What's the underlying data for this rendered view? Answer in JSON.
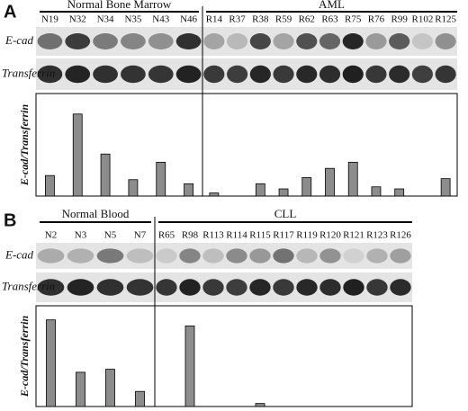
{
  "chart_data": [
    {
      "type": "bar",
      "panel": "A",
      "groups": [
        "Normal Bone Marrow",
        "AML"
      ],
      "blot_labels": [
        "E-cad",
        "Transferrin"
      ],
      "y_label": "E-cad/Transferrin",
      "categories": [
        "N19",
        "N32",
        "N34",
        "N35",
        "N43",
        "N46",
        "R14",
        "R37",
        "R38",
        "R59",
        "R62",
        "R63",
        "R75",
        "R76",
        "R99",
        "R102",
        "R125"
      ],
      "values": [
        20,
        80,
        41,
        16,
        33,
        12,
        3,
        0,
        12,
        7,
        18,
        27,
        33,
        9,
        7,
        0,
        17
      ],
      "color": "#8c8c8c",
      "ylim": [
        0,
        100
      ]
    },
    {
      "type": "bar",
      "panel": "B",
      "groups": [
        "Normal Blood",
        "CLL"
      ],
      "blot_labels": [
        "E-cad",
        "Transferrin"
      ],
      "y_label": "E-cad/Transferrin",
      "categories": [
        "N2",
        "N3",
        "N5",
        "N7",
        "R65",
        "R98",
        "R113",
        "R114",
        "R115",
        "R117",
        "R119",
        "R120",
        "R121",
        "R123",
        "R126"
      ],
      "values": [
        86,
        34,
        37,
        15,
        0,
        80,
        0,
        0,
        3,
        0,
        0,
        0,
        0,
        0,
        0
      ],
      "color": "#8c8c8c",
      "ylim": [
        0,
        100
      ]
    }
  ]
}
